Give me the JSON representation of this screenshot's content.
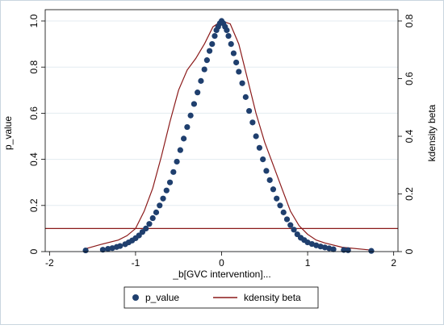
{
  "chart_data": {
    "type": "scatter",
    "title": "",
    "xlabel": "_b[GVC intervention]...",
    "ylabel_left": "p_value",
    "ylabel_right": "kdensity beta",
    "xlim": [
      -2.05,
      2.05
    ],
    "ylim_left": [
      0,
      1.0
    ],
    "ylim_right": [
      0,
      0.8
    ],
    "x_ticks": [
      -2,
      -1,
      0,
      1,
      2
    ],
    "y_ticks_left": [
      0,
      0.2,
      0.4,
      0.6,
      0.8,
      1.0
    ],
    "y_ticks_right": [
      0,
      0.2,
      0.4,
      0.6,
      0.8
    ],
    "x_tick_labels": [
      "-2",
      "-1",
      "0",
      "1",
      "2"
    ],
    "y_tick_labels_left": [
      "0",
      "0.2",
      "0.4",
      "0.6",
      "0.8",
      "1.0"
    ],
    "y_tick_labels_right": [
      "0",
      "0.2",
      "0.4",
      "0.6",
      "0.8"
    ],
    "grid": "horizontal",
    "legend_position": "bottom",
    "reference_line": {
      "axis": "y_left",
      "value": 0.1,
      "color": "#8b1a1a"
    },
    "series": [
      {
        "name": "p_value",
        "kind": "scatter",
        "axis": "left",
        "color": "#1f3f6e",
        "x": [
          -1.58,
          -1.38,
          -1.32,
          -1.27,
          -1.22,
          -1.18,
          -1.12,
          -1.08,
          -1.04,
          -1.0,
          -0.96,
          -0.92,
          -0.88,
          -0.84,
          -0.8,
          -0.76,
          -0.72,
          -0.68,
          -0.64,
          -0.6,
          -0.56,
          -0.52,
          -0.48,
          -0.44,
          -0.4,
          -0.36,
          -0.32,
          -0.28,
          -0.24,
          -0.2,
          -0.17,
          -0.14,
          -0.11,
          -0.08,
          -0.06,
          -0.04,
          -0.02,
          0.0,
          0.02,
          0.04,
          0.06,
          0.08,
          0.11,
          0.14,
          0.17,
          0.2,
          0.24,
          0.28,
          0.32,
          0.36,
          0.4,
          0.44,
          0.48,
          0.52,
          0.56,
          0.6,
          0.64,
          0.68,
          0.72,
          0.76,
          0.8,
          0.84,
          0.88,
          0.92,
          0.96,
          1.0,
          1.05,
          1.1,
          1.15,
          1.2,
          1.25,
          1.3,
          1.42,
          1.47,
          1.74
        ],
        "y": [
          0.005,
          0.008,
          0.012,
          0.015,
          0.02,
          0.024,
          0.032,
          0.04,
          0.048,
          0.058,
          0.07,
          0.085,
          0.1,
          0.12,
          0.145,
          0.17,
          0.2,
          0.23,
          0.265,
          0.3,
          0.345,
          0.39,
          0.44,
          0.49,
          0.54,
          0.59,
          0.64,
          0.69,
          0.74,
          0.79,
          0.83,
          0.87,
          0.9,
          0.935,
          0.96,
          0.975,
          0.99,
          1.0,
          0.99,
          0.975,
          0.96,
          0.935,
          0.9,
          0.86,
          0.82,
          0.78,
          0.73,
          0.67,
          0.61,
          0.56,
          0.5,
          0.45,
          0.4,
          0.35,
          0.31,
          0.27,
          0.23,
          0.2,
          0.17,
          0.14,
          0.115,
          0.095,
          0.075,
          0.06,
          0.05,
          0.04,
          0.033,
          0.027,
          0.022,
          0.018,
          0.014,
          0.01,
          0.007,
          0.006,
          0.003
        ]
      },
      {
        "name": "kdensity beta",
        "kind": "line",
        "axis": "right",
        "color": "#8b1a1a",
        "x": [
          -1.58,
          -1.4,
          -1.2,
          -1.1,
          -1.0,
          -0.9,
          -0.8,
          -0.7,
          -0.6,
          -0.5,
          -0.4,
          -0.3,
          -0.2,
          -0.1,
          0.0,
          0.1,
          0.2,
          0.3,
          0.4,
          0.5,
          0.6,
          0.7,
          0.8,
          0.9,
          1.0,
          1.1,
          1.2,
          1.4,
          1.74
        ],
        "y": [
          0.01,
          0.025,
          0.04,
          0.055,
          0.08,
          0.14,
          0.22,
          0.33,
          0.45,
          0.56,
          0.63,
          0.67,
          0.72,
          0.78,
          0.8,
          0.79,
          0.72,
          0.6,
          0.48,
          0.38,
          0.3,
          0.22,
          0.14,
          0.09,
          0.06,
          0.04,
          0.03,
          0.015,
          0.005
        ]
      }
    ]
  }
}
